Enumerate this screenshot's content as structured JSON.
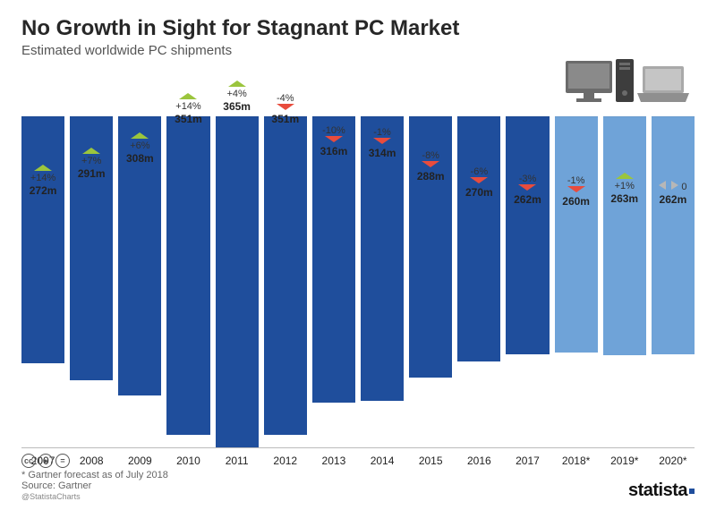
{
  "title": "No Growth in Sight for Stagnant PC Market",
  "subtitle": "Estimated worldwide PC shipments",
  "chart": {
    "type": "bar",
    "ymax": 365,
    "bar_color_actual": "#1f4e9c",
    "bar_color_forecast": "#6fa3d8",
    "arrow_up_color": "#9bc53d",
    "arrow_down_color": "#e84c3d",
    "arrow_flat_color": "#b7b7b7",
    "background_color": "#ffffff",
    "label_fontsize": 12,
    "annot_fontsize": 11,
    "bars": [
      {
        "year": "2007",
        "value": 272,
        "value_label": "272m",
        "pct": "+14%",
        "dir": "up",
        "forecast": false
      },
      {
        "year": "2008",
        "value": 291,
        "value_label": "291m",
        "pct": "+7%",
        "dir": "up",
        "forecast": false
      },
      {
        "year": "2009",
        "value": 308,
        "value_label": "308m",
        "pct": "+6%",
        "dir": "up",
        "forecast": false
      },
      {
        "year": "2010",
        "value": 351,
        "value_label": "351m",
        "pct": "+14%",
        "dir": "up",
        "forecast": false
      },
      {
        "year": "2011",
        "value": 365,
        "value_label": "365m",
        "pct": "+4%",
        "dir": "up",
        "forecast": false
      },
      {
        "year": "2012",
        "value": 351,
        "value_label": "351m",
        "pct": "-4%",
        "dir": "down",
        "forecast": false
      },
      {
        "year": "2013",
        "value": 316,
        "value_label": "316m",
        "pct": "-10%",
        "dir": "down",
        "forecast": false
      },
      {
        "year": "2014",
        "value": 314,
        "value_label": "314m",
        "pct": "-1%",
        "dir": "down",
        "forecast": false
      },
      {
        "year": "2015",
        "value": 288,
        "value_label": "288m",
        "pct": "-8%",
        "dir": "down",
        "forecast": false
      },
      {
        "year": "2016",
        "value": 270,
        "value_label": "270m",
        "pct": "-6%",
        "dir": "down",
        "forecast": false
      },
      {
        "year": "2017",
        "value": 262,
        "value_label": "262m",
        "pct": "-3%",
        "dir": "down",
        "forecast": false
      },
      {
        "year": "2018*",
        "value": 260,
        "value_label": "260m",
        "pct": "-1%",
        "dir": "down",
        "forecast": true
      },
      {
        "year": "2019*",
        "value": 263,
        "value_label": "263m",
        "pct": "+1%",
        "dir": "up",
        "forecast": true
      },
      {
        "year": "2020*",
        "value": 262,
        "value_label": "262m",
        "pct": "0",
        "dir": "flat",
        "forecast": true
      }
    ]
  },
  "footer": {
    "forecast_note": "* Gartner forecast as of July 2018",
    "source": "Source: Gartner",
    "handle": "@StatistaCharts",
    "logo": "statista"
  },
  "icons": {
    "monitor_color": "#6b6b6b",
    "tower_color": "#3d3d3d",
    "laptop_color": "#a9a9a9"
  }
}
